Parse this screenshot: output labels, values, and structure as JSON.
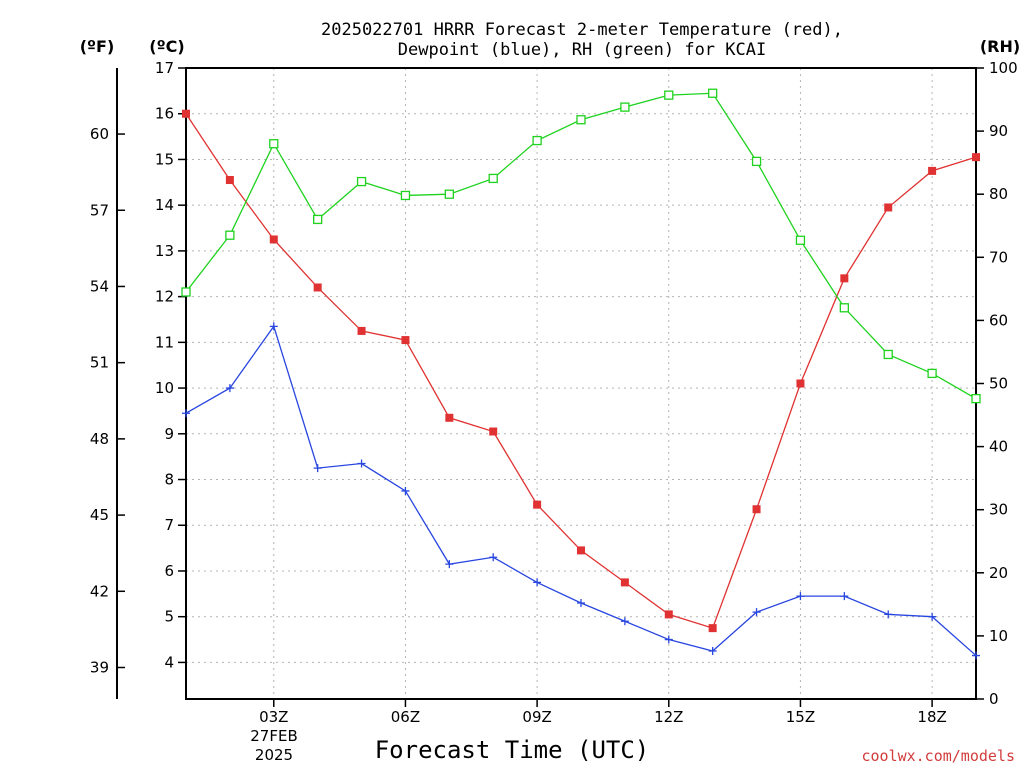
{
  "chart_data": {
    "type": "line",
    "title_line1": "2025022701 HRRR Forecast 2-meter Temperature (red),",
    "title_line2": "Dewpoint (blue), RH (green) for KCAI",
    "xlabel": "Forecast Time (UTC)",
    "units": {
      "fahrenheit": "(ºF)",
      "celsius": "(ºC)",
      "rh": "(RH)"
    },
    "x_hours": [
      1,
      2,
      3,
      4,
      5,
      6,
      7,
      8,
      9,
      10,
      11,
      12,
      13,
      14,
      15,
      16,
      17,
      18,
      19
    ],
    "x_range": [
      1,
      19
    ],
    "x_ticks": [
      {
        "hour": 3,
        "label": "03Z"
      },
      {
        "hour": 6,
        "label": "06Z"
      },
      {
        "hour": 9,
        "label": "09Z"
      },
      {
        "hour": 12,
        "label": "12Z"
      },
      {
        "hour": 15,
        "label": "15Z"
      },
      {
        "hour": 18,
        "label": "18Z"
      }
    ],
    "date_label_line1": "27FEB",
    "date_label_line2": "2025",
    "celsius_range": [
      3.2,
      17
    ],
    "celsius_ticks": [
      4,
      5,
      6,
      7,
      8,
      9,
      10,
      11,
      12,
      13,
      14,
      15,
      16,
      17
    ],
    "fahrenheit_ticks": [
      39,
      42,
      45,
      48,
      51,
      54,
      57,
      60
    ],
    "rh_range": [
      0,
      100
    ],
    "rh_ticks": [
      0,
      10,
      20,
      30,
      40,
      50,
      60,
      70,
      80,
      90,
      100
    ],
    "grid": true,
    "colors": {
      "temperature": "#e03232",
      "dewpoint": "#2846e0",
      "rh": "#1ed21e"
    },
    "series": [
      {
        "key": "temperature",
        "axis": "celsius",
        "marker": "filled-square",
        "values": [
          16.0,
          14.55,
          13.25,
          12.2,
          11.25,
          11.05,
          9.35,
          9.05,
          7.45,
          6.45,
          5.75,
          5.05,
          4.75,
          7.35,
          10.1,
          12.4,
          13.95,
          14.75,
          15.05
        ]
      },
      {
        "key": "dewpoint",
        "axis": "celsius",
        "marker": "plus",
        "values": [
          9.45,
          10.0,
          11.35,
          8.25,
          8.35,
          7.75,
          6.15,
          6.3,
          5.75,
          5.3,
          4.9,
          4.5,
          4.25,
          5.1,
          5.45,
          5.45,
          5.05,
          5.0,
          4.15
        ]
      },
      {
        "key": "rh",
        "axis": "rh",
        "marker": "open-square",
        "values": [
          64.5,
          73.5,
          88.0,
          76.0,
          82.0,
          79.8,
          80.0,
          82.5,
          88.5,
          91.8,
          93.8,
          95.7,
          96.0,
          85.2,
          72.7,
          62.0,
          54.6,
          51.6,
          47.6
        ]
      }
    ],
    "watermark": "coolwx.com/models"
  }
}
